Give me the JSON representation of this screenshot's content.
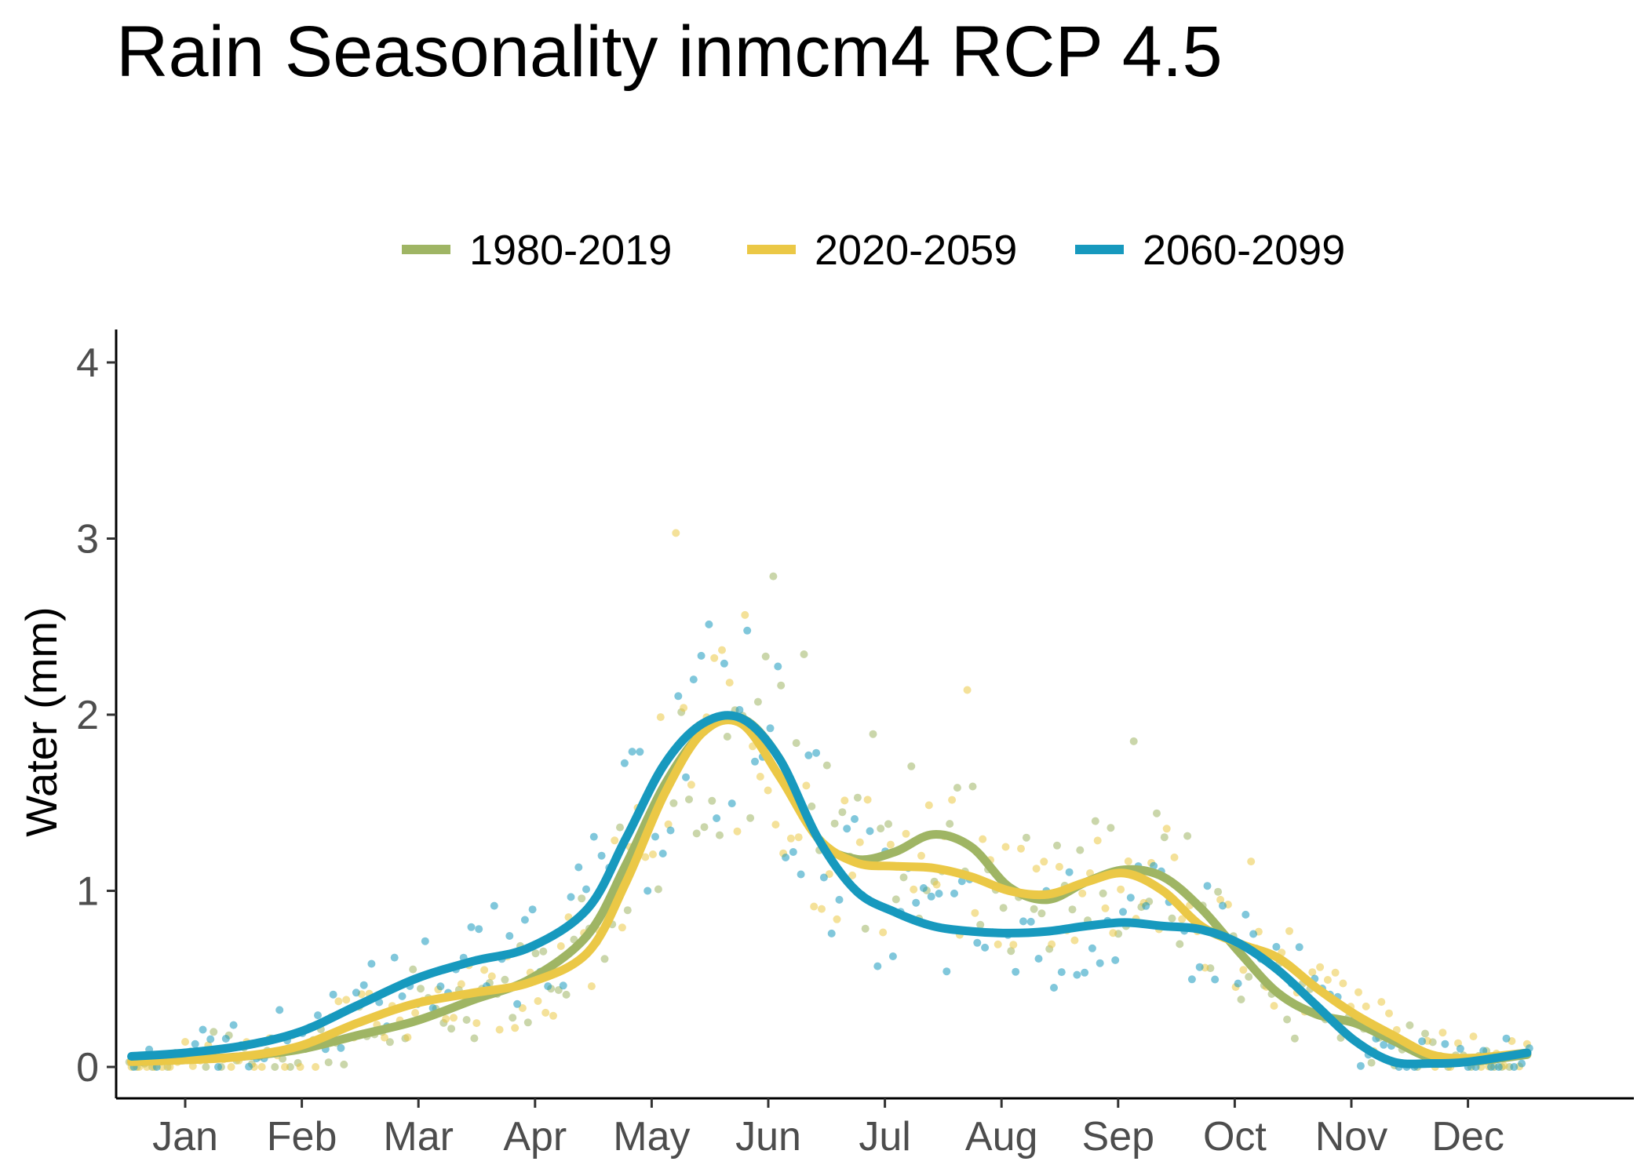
{
  "chart_data": {
    "type": "line",
    "title": "Rain Seasonality inmcm4 RCP 4.5",
    "xlabel": "",
    "ylabel": "Water (mm)",
    "x_ticks": [
      "Jan",
      "Feb",
      "Mar",
      "Apr",
      "May",
      "Jun",
      "Jul",
      "Aug",
      "Sep",
      "Oct",
      "Nov",
      "Dec"
    ],
    "ylim": [
      0,
      4
    ],
    "y_ticks": [
      0,
      1,
      2,
      3,
      4
    ],
    "legend_position": "top",
    "grid": false,
    "series": [
      {
        "name": "1980-2019",
        "color": "#9FB564",
        "x": [
          1,
          15,
          30,
          45,
          60,
          75,
          90,
          105,
          120,
          130,
          140,
          150,
          160,
          170,
          180,
          190,
          200,
          210,
          220,
          230,
          240,
          250,
          260,
          270,
          280,
          290,
          300,
          310,
          320,
          330,
          340,
          350,
          365
        ],
        "values": [
          0.03,
          0.04,
          0.06,
          0.1,
          0.18,
          0.26,
          0.38,
          0.5,
          0.75,
          1.15,
          1.6,
          1.9,
          1.98,
          1.75,
          1.3,
          1.18,
          1.22,
          1.32,
          1.25,
          1.02,
          0.95,
          1.05,
          1.12,
          1.08,
          0.9,
          0.65,
          0.42,
          0.3,
          0.25,
          0.15,
          0.05,
          0.03,
          0.07
        ]
      },
      {
        "name": "2020-2059",
        "color": "#EBC846",
        "x": [
          1,
          15,
          30,
          45,
          60,
          75,
          90,
          105,
          120,
          130,
          140,
          150,
          160,
          170,
          180,
          190,
          200,
          210,
          220,
          230,
          240,
          250,
          260,
          270,
          280,
          290,
          300,
          310,
          320,
          330,
          340,
          350,
          365
        ],
        "values": [
          0.03,
          0.04,
          0.06,
          0.12,
          0.25,
          0.36,
          0.42,
          0.48,
          0.65,
          1.05,
          1.55,
          1.9,
          1.95,
          1.65,
          1.3,
          1.16,
          1.14,
          1.13,
          1.08,
          1.0,
          0.98,
          1.05,
          1.1,
          1.0,
          0.8,
          0.7,
          0.62,
          0.45,
          0.3,
          0.18,
          0.07,
          0.05,
          0.08
        ]
      },
      {
        "name": "2060-2099",
        "color": "#1799BE",
        "x": [
          1,
          15,
          30,
          45,
          60,
          75,
          90,
          105,
          120,
          130,
          140,
          150,
          160,
          170,
          180,
          190,
          200,
          210,
          220,
          230,
          240,
          250,
          260,
          270,
          280,
          290,
          300,
          310,
          320,
          330,
          340,
          350,
          365
        ],
        "values": [
          0.06,
          0.08,
          0.12,
          0.2,
          0.35,
          0.5,
          0.6,
          0.68,
          0.9,
          1.3,
          1.72,
          1.95,
          1.98,
          1.75,
          1.3,
          1.0,
          0.88,
          0.8,
          0.77,
          0.76,
          0.77,
          0.8,
          0.82,
          0.8,
          0.78,
          0.7,
          0.55,
          0.35,
          0.15,
          0.03,
          0.02,
          0.03,
          0.08
        ]
      }
    ]
  }
}
